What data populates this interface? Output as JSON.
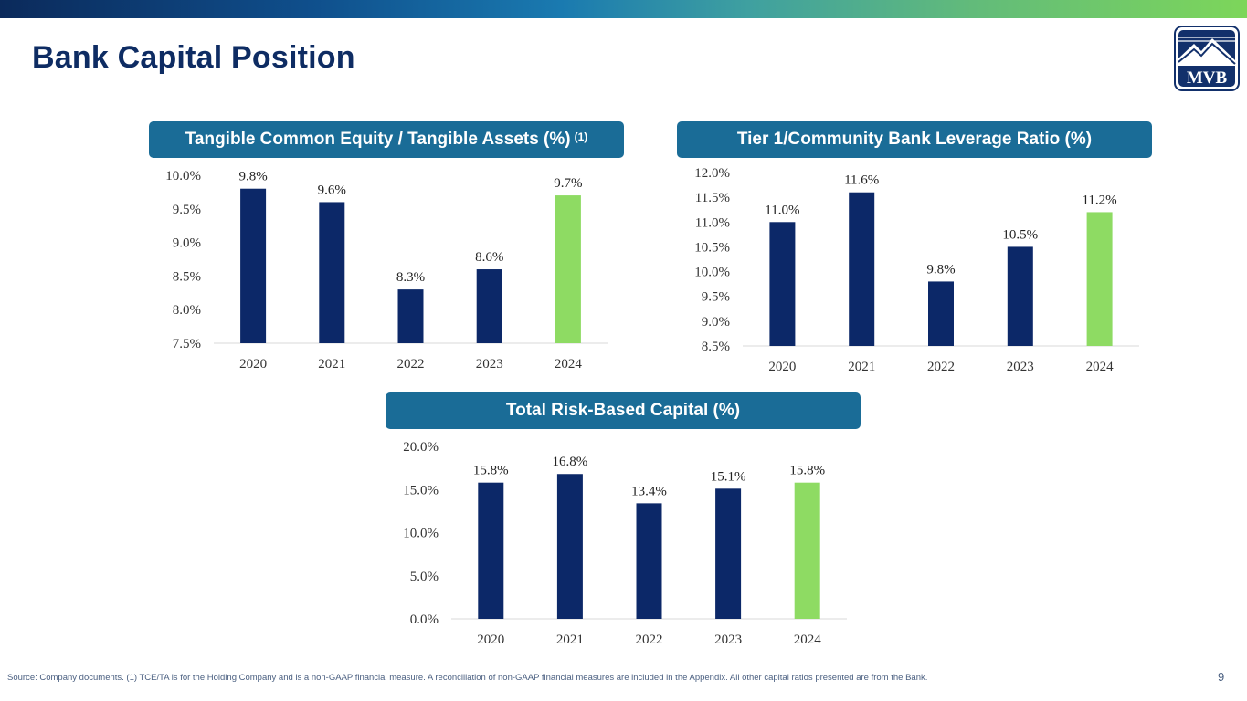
{
  "slide": {
    "title": "Bank Capital Position",
    "logo_text": "MVB",
    "footnote": "Source: Company documents. (1) TCE/TA is for the Holding Company and is a non-GAAP financial measure. A reconciliation of non-GAAP financial measures are included in the Appendix. All other capital ratios presented are from the Bank.",
    "page_number": "9"
  },
  "colors": {
    "navy_bar": "#0c2868",
    "green_bar": "#8edb63",
    "header_bg": "#1a6c97",
    "title_text": "#0e2c63"
  },
  "headers": {
    "tce": {
      "label": "Tangible Common Equity / Tangible Assets (%)",
      "superscript": "(1)"
    },
    "tier1": {
      "label": "Tier 1/Community Bank Leverage Ratio (%)"
    },
    "trbc": {
      "label": "Total Risk-Based Capital (%)"
    }
  },
  "chart_data": [
    {
      "id": "tce",
      "type": "bar",
      "title": "Tangible Common Equity / Tangible Assets (%) (1)",
      "categories": [
        "2020",
        "2021",
        "2022",
        "2023",
        "2024"
      ],
      "values": [
        9.8,
        9.6,
        8.3,
        8.6,
        9.7
      ],
      "labels": [
        "9.8%",
        "9.6%",
        "8.3%",
        "8.6%",
        "9.7%"
      ],
      "highlight_index": 4,
      "ylim": [
        7.5,
        10.0
      ],
      "yticks": [
        7.5,
        8.0,
        8.5,
        9.0,
        9.5,
        10.0
      ],
      "ytick_labels": [
        "7.5%",
        "8.0%",
        "8.5%",
        "9.0%",
        "9.5%",
        "10.0%"
      ],
      "xlabel": "",
      "ylabel": "",
      "grid": false
    },
    {
      "id": "tier1",
      "type": "bar",
      "title": "Tier 1/Community Bank Leverage Ratio (%)",
      "categories": [
        "2020",
        "2021",
        "2022",
        "2023",
        "2024"
      ],
      "values": [
        11.0,
        11.6,
        9.8,
        10.5,
        11.2
      ],
      "labels": [
        "11.0%",
        "11.6%",
        "9.8%",
        "10.5%",
        "11.2%"
      ],
      "highlight_index": 4,
      "ylim": [
        8.5,
        12.0
      ],
      "yticks": [
        8.5,
        9.0,
        9.5,
        10.0,
        10.5,
        11.0,
        11.5,
        12.0
      ],
      "ytick_labels": [
        "8.5%",
        "9.0%",
        "9.5%",
        "10.0%",
        "10.5%",
        "11.0%",
        "11.5%",
        "12.0%"
      ],
      "xlabel": "",
      "ylabel": "",
      "grid": false
    },
    {
      "id": "trbc",
      "type": "bar",
      "title": "Total Risk-Based Capital (%)",
      "categories": [
        "2020",
        "2021",
        "2022",
        "2023",
        "2024"
      ],
      "values": [
        15.8,
        16.8,
        13.4,
        15.1,
        15.8
      ],
      "labels": [
        "15.8%",
        "16.8%",
        "13.4%",
        "15.1%",
        "15.8%"
      ],
      "highlight_index": 4,
      "ylim": [
        0.0,
        20.0
      ],
      "yticks": [
        0,
        5,
        10,
        15,
        20
      ],
      "ytick_labels": [
        "0.0%",
        "5.0%",
        "10.0%",
        "15.0%",
        "20.0%"
      ],
      "xlabel": "",
      "ylabel": "",
      "grid": false
    }
  ]
}
